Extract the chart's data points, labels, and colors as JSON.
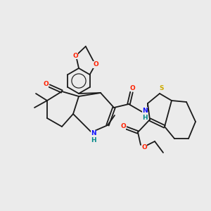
{
  "bg": "#ebebeb",
  "bc": "#1a1a1a",
  "lw": 1.3,
  "fs": 6.5,
  "O": "#ff2000",
  "N": "#1010ff",
  "S": "#ccaa00",
  "NH": "#008888"
}
